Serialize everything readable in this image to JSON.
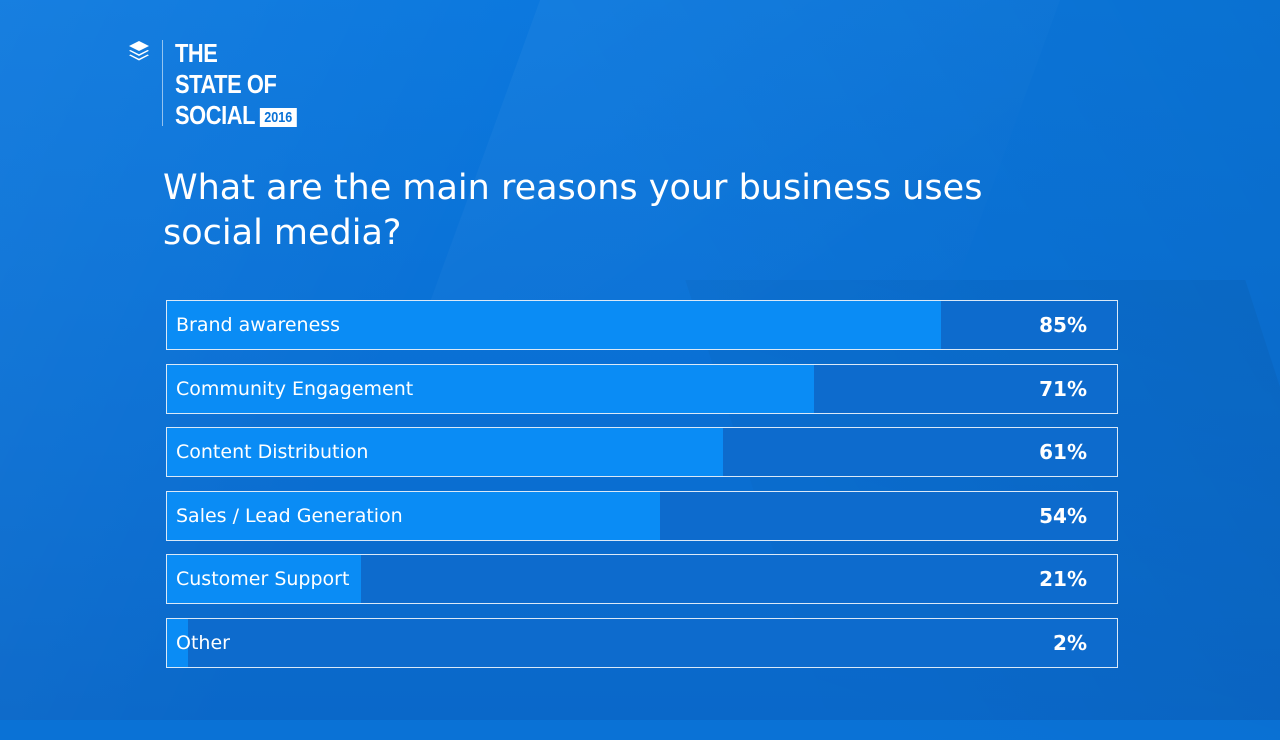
{
  "logo": {
    "line1": "THE",
    "line2": "STATE OF",
    "line3": "SOCIAL",
    "year": "2016",
    "icon": "buffer-layers-icon"
  },
  "question": "What are the main reasons your business uses social media?",
  "colors": {
    "background": "#0a72d6",
    "bar_fill": "#0a8cf5",
    "bar_track": "#0d6bcd",
    "text": "#ffffff"
  },
  "chart_data": {
    "type": "bar",
    "orientation": "horizontal",
    "title": "What are the main reasons your business uses social media?",
    "categories": [
      "Brand awareness",
      "Community Engagement",
      "Content Distribution",
      "Sales / Lead Generation",
      "Customer Support",
      "Other"
    ],
    "values": [
      85,
      71,
      61,
      54,
      21,
      2
    ],
    "value_labels": [
      "85%",
      "71%",
      "61%",
      "54%",
      "21%",
      "2%"
    ],
    "xlim": [
      0,
      100
    ],
    "grid": false
  }
}
